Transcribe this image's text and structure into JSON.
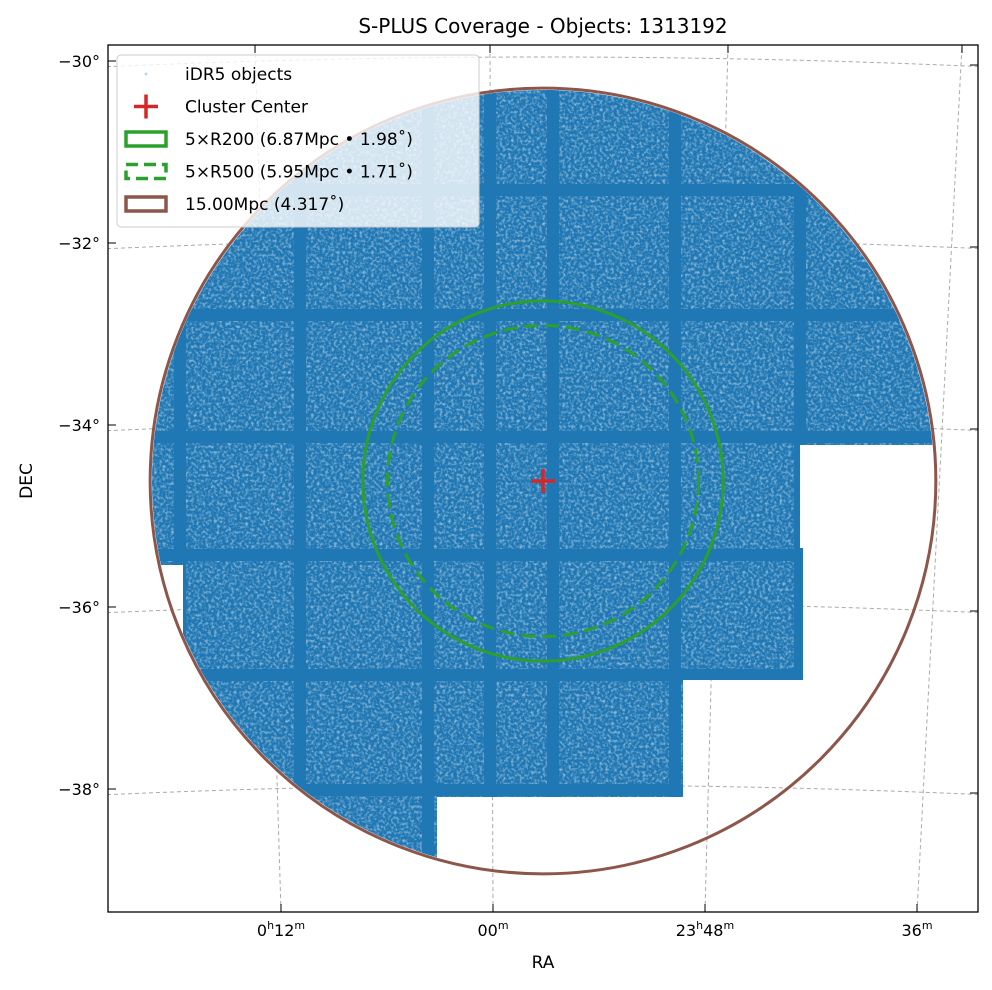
{
  "chart_data": {
    "type": "scatter",
    "title": "S-PLUS Coverage - Objects: 1313192",
    "xlabel": "RA",
    "ylabel": "DEC",
    "grid": true,
    "legend_placement": "top-left",
    "x_ticks": [
      {
        "h": "0",
        "m": "12",
        "hsup": "h",
        "msup": "m"
      },
      {
        "h": "",
        "m": "00",
        "hsup": "",
        "msup": "m"
      },
      {
        "h": "23",
        "m": "48",
        "hsup": "h",
        "msup": "m"
      },
      {
        "h": "",
        "m": "36",
        "hsup": "",
        "msup": "m"
      }
    ],
    "y_ticks": [
      "−30°",
      "−32°",
      "−34°",
      "−36°",
      "−38°"
    ],
    "y_tick_values": [
      -30,
      -32,
      -34,
      -36,
      -38
    ],
    "cluster_center": {
      "ra_deg": 359.3,
      "dec_deg": -34.62
    },
    "circles": [
      {
        "name": "5×R200 (6.87Mpc • 1.98˚)",
        "radius_deg": 1.98,
        "color": "#2ca02c",
        "style": "solid"
      },
      {
        "name": "5×R500 (5.95Mpc • 1.71˚)",
        "radius_deg": 1.71,
        "color": "#2ca02c",
        "style": "dashed"
      },
      {
        "name": "15.00Mpc (4.317˚)",
        "radius_deg": 4.317,
        "color": "#8c564b",
        "style": "solid"
      }
    ],
    "series": [
      {
        "name": "iDR5 objects",
        "color": "#1f77b4",
        "count": 1313192
      }
    ],
    "legend": [
      {
        "label": "iDR5 objects",
        "marker": "point",
        "color": "#1f77b4"
      },
      {
        "label": "Cluster Center",
        "marker": "plus",
        "color": "#d62728"
      },
      {
        "label": "5×R200 (6.87Mpc • 1.98˚)",
        "marker": "rect",
        "color": "#2ca02c"
      },
      {
        "label": "5×R500 (5.95Mpc • 1.71˚)",
        "marker": "rect-dashed",
        "color": "#2ca02c"
      },
      {
        "label": "15.00Mpc (4.317˚)",
        "marker": "rect",
        "color": "#8c564b"
      }
    ]
  }
}
